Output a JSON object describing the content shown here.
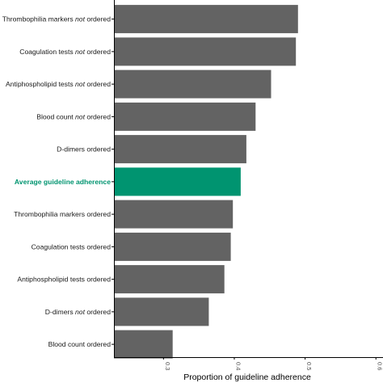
{
  "chart_data": {
    "type": "bar",
    "orientation": "horizontal",
    "xlabel": "Proportion of guideline adherence",
    "ylabel": "",
    "xlim": [
      0.23,
      0.61
    ],
    "xticks": [
      "0.3",
      "0.4",
      "0.5",
      "0.6"
    ],
    "grid": false,
    "legend": "none",
    "categories": [
      {
        "pre": "Thrombophilia markers ",
        "em": "not",
        "post": " ordered",
        "value": 0.49,
        "highlight": false
      },
      {
        "pre": "Coagulation tests ",
        "em": "not",
        "post": " ordered",
        "value": 0.487,
        "highlight": false
      },
      {
        "pre": "Antiphospholipid tests ",
        "em": "not",
        "post": " ordered",
        "value": 0.452,
        "highlight": false
      },
      {
        "pre": "Blood count ",
        "em": "not",
        "post": " ordered",
        "value": 0.43,
        "highlight": false
      },
      {
        "pre": "D-dimers ordered",
        "em": "",
        "post": "",
        "value": 0.417,
        "highlight": false
      },
      {
        "pre": "Average guideline adherence",
        "em": "",
        "post": "",
        "value": 0.409,
        "highlight": true
      },
      {
        "pre": "Thrombophilia markers ordered",
        "em": "",
        "post": "",
        "value": 0.398,
        "highlight": false
      },
      {
        "pre": "Coagulation tests ordered",
        "em": "",
        "post": "",
        "value": 0.395,
        "highlight": false
      },
      {
        "pre": "Antiphospholipid tests ordered",
        "em": "",
        "post": "",
        "value": 0.386,
        "highlight": false
      },
      {
        "pre": "D-dimers ",
        "em": "not",
        "post": " ordered",
        "value": 0.364,
        "highlight": false
      },
      {
        "pre": "Blood count ordered",
        "em": "",
        "post": "",
        "value": 0.313,
        "highlight": false
      }
    ],
    "colors": {
      "bar": "#636363",
      "highlight": "#009470",
      "highlight_text": "#009470",
      "axis": "#000000"
    }
  }
}
